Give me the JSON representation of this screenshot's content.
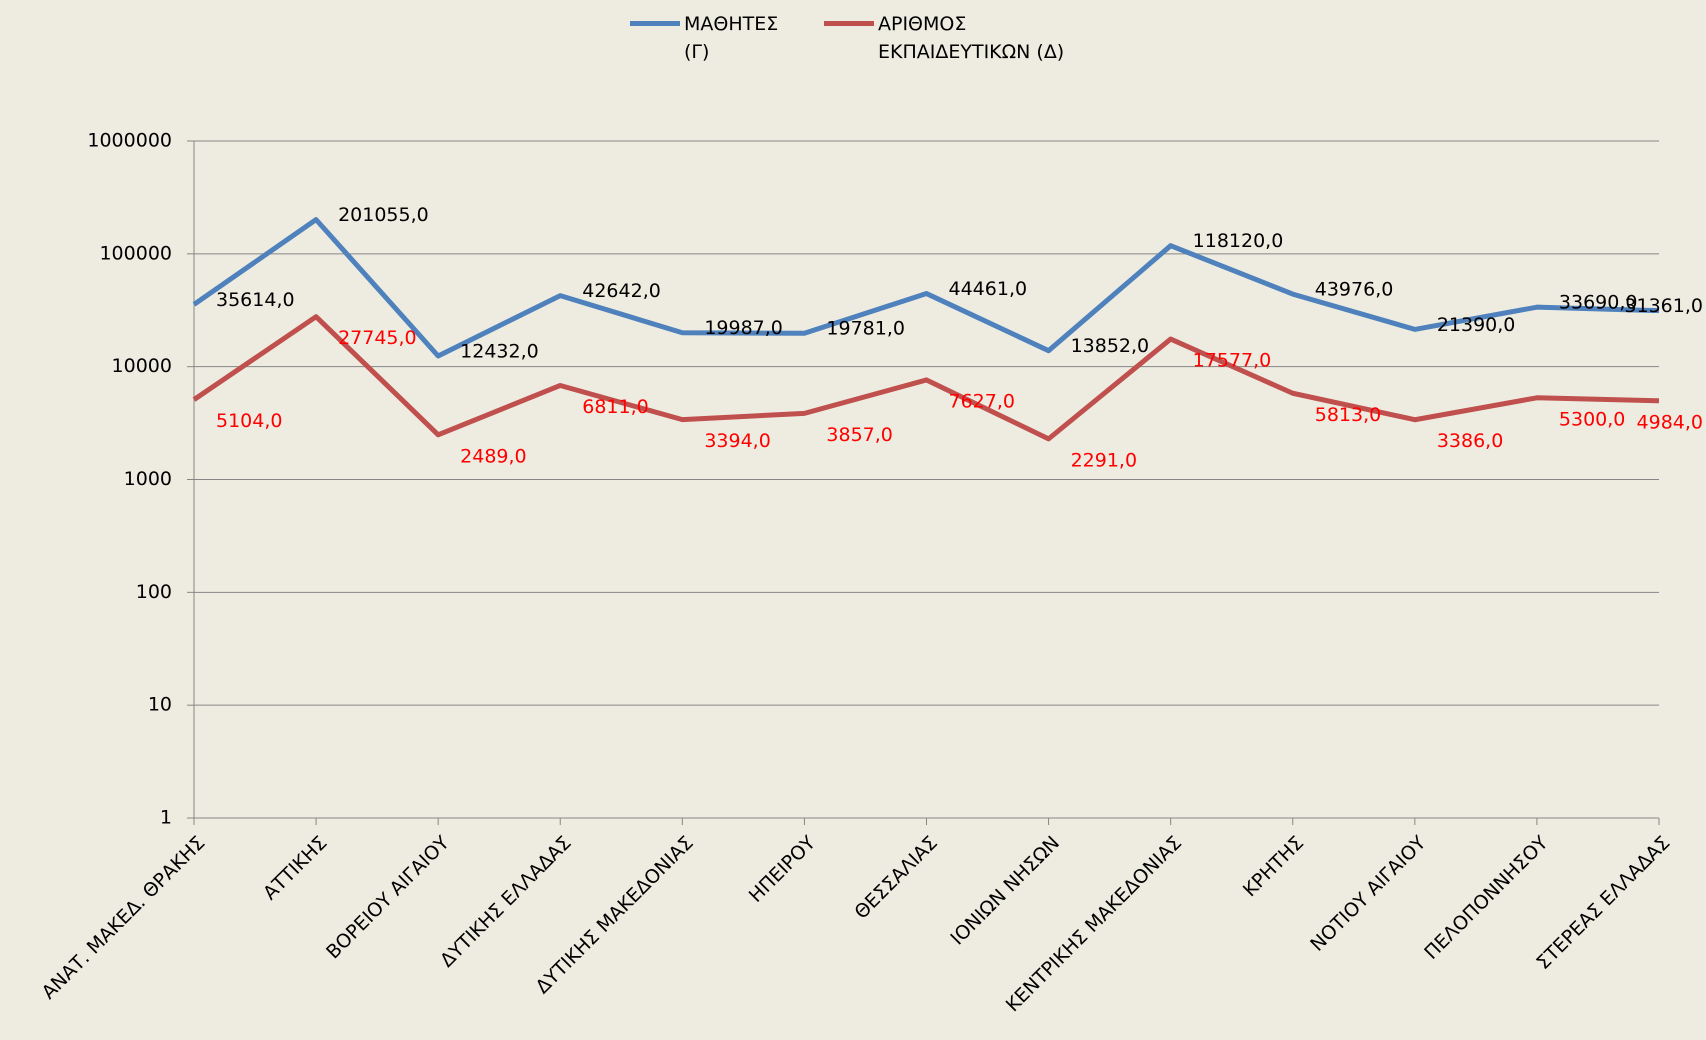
{
  "chart_data": {
    "type": "line",
    "log_scale": true,
    "grid": true,
    "legend": "top",
    "categories": [
      "ΑΝΑΤ. ΜΑΚΕΔ. ΘΡΑΚΗΣ",
      "ΑΤΤΙΚΗΣ",
      "ΒΟΡΕΙΟΥ ΑΙΓΑΙΟΥ",
      "ΔΥΤΙΚΗΣ ΕΛΛΑΔΑΣ",
      "ΔΥΤΙΚΗΣ ΜΑΚΕΔΟΝΙΑΣ",
      "ΗΠΕΙΡΟΥ",
      "ΘΕΣΣΑΛΙΑΣ",
      "ΙΟΝΙΩΝ ΝΗΣΩΝ",
      "ΚΕΝΤΡΙΚΗΣ ΜΑΚΕΔΟΝΙΑΣ",
      "ΚΡΗΤΗΣ",
      "ΝΟΤΙΟΥ ΑΙΓΑΙΟΥ",
      "ΠΕΛΟΠΟΝΝΗΣΟΥ",
      "ΣΤΕΡΕΑΣ ΕΛΛΑΔΑΣ"
    ],
    "ylim": [
      1,
      1000000
    ],
    "yticks": [
      1,
      10,
      100,
      1000,
      10000,
      100000,
      1000000
    ],
    "series": [
      {
        "name": "ΜΑΘΗΤΕΣ (Γ)",
        "color": "#4f81bd",
        "label_color": "#000000",
        "values": [
          35614,
          201055,
          12432,
          42642,
          19987,
          19781,
          44461,
          13852,
          118120,
          43976,
          21390,
          33690,
          31361
        ],
        "value_labels": [
          "35614,0",
          "201055,0",
          "12432,0",
          "42642,0",
          "19987,0",
          "19781,0",
          "44461,0",
          "13852,0",
          "118120,0",
          "43976,0",
          "21390,0",
          "33690,0",
          "31361,0"
        ]
      },
      {
        "name": "ΑΡΙΘΜΟΣ ΕΚΠΑΙΔΕΥΤΙΚΩΝ (Δ)",
        "color": "#c0504d",
        "label_color": "#ff0000",
        "values": [
          5104,
          27745,
          2489,
          6811,
          3394,
          3857,
          7627,
          2291,
          17577,
          5813,
          3386,
          5300,
          4984
        ],
        "value_labels": [
          "5104,0",
          "27745,0",
          "2489,0",
          "6811,0",
          "3394,0",
          "3857,0",
          "7627,0",
          "2291,0",
          "17577,0",
          "5813,0",
          "3386,0",
          "5300,0",
          "4984,0"
        ]
      }
    ]
  }
}
